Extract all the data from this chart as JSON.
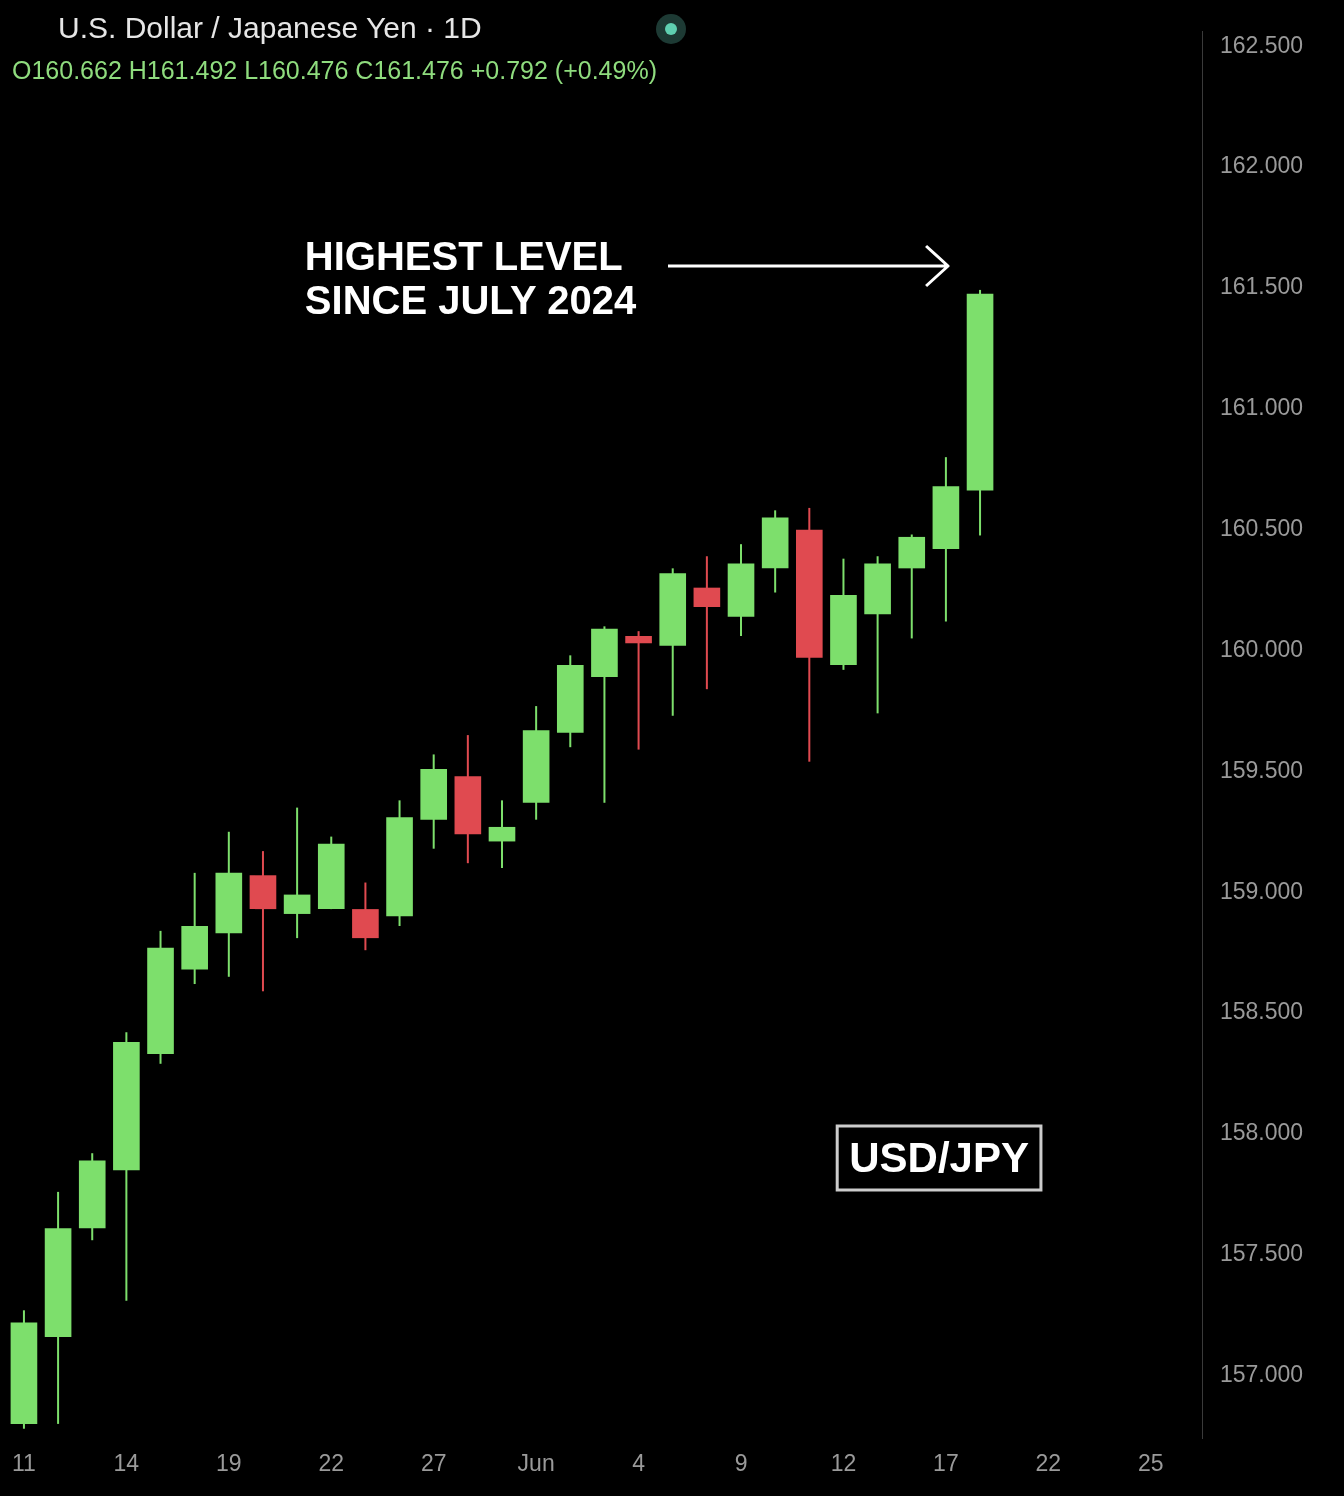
{
  "chart_data": {
    "type": "candlestick",
    "title": "U.S. Dollar / Japanese Yen · 1D",
    "subtitle": "O160.662 H161.492 L160.476 C161.476 +0.792 (+0.49%)",
    "categories": [
      "11",
      null,
      null,
      "14",
      null,
      null,
      "19",
      null,
      null,
      "22",
      null,
      null,
      "27",
      null,
      null,
      "Jun",
      null,
      null,
      "4",
      null,
      null,
      "9",
      null,
      null,
      "12",
      null,
      null,
      "17",
      null,
      null,
      "22",
      null,
      null,
      "25",
      null
    ],
    "ohlc": [
      [
        156.8,
        157.27,
        156.78,
        157.22
      ],
      [
        157.16,
        157.76,
        156.8,
        157.61
      ],
      [
        157.61,
        157.92,
        157.56,
        157.89
      ],
      [
        157.85,
        158.42,
        157.31,
        158.38
      ],
      [
        158.33,
        158.84,
        158.29,
        158.77
      ],
      [
        158.68,
        159.08,
        158.62,
        158.86
      ],
      [
        158.83,
        159.25,
        158.65,
        159.08
      ],
      [
        159.07,
        159.17,
        158.59,
        158.93
      ],
      [
        158.91,
        159.35,
        158.81,
        158.99
      ],
      [
        158.93,
        159.23,
        158.93,
        159.2
      ],
      [
        158.93,
        159.04,
        158.76,
        158.81
      ],
      [
        158.9,
        159.38,
        158.86,
        159.31
      ],
      [
        159.3,
        159.57,
        159.18,
        159.51
      ],
      [
        159.48,
        159.65,
        159.12,
        159.24
      ],
      [
        159.21,
        159.38,
        159.1,
        159.27
      ],
      [
        159.37,
        159.77,
        159.3,
        159.67
      ],
      [
        159.66,
        159.98,
        159.6,
        159.94
      ],
      [
        159.89,
        160.1,
        159.37,
        160.09
      ],
      [
        160.06,
        160.08,
        159.59,
        160.03
      ],
      [
        160.02,
        160.34,
        159.73,
        160.32
      ],
      [
        160.26,
        160.39,
        159.84,
        160.18
      ],
      [
        160.14,
        160.44,
        160.06,
        160.36
      ],
      [
        160.34,
        160.58,
        160.24,
        160.55
      ],
      [
        160.5,
        160.59,
        159.54,
        159.97
      ],
      [
        159.94,
        160.38,
        159.92,
        160.23
      ],
      [
        160.15,
        160.39,
        159.74,
        160.36
      ],
      [
        160.34,
        160.48,
        160.05,
        160.47
      ],
      [
        160.42,
        160.8,
        160.12,
        160.68
      ],
      [
        160.662,
        161.492,
        160.476,
        161.476
      ],
      null,
      null,
      null,
      null,
      null,
      null
    ],
    "colors": [
      "#7ddf6c",
      "#7ddf6c",
      "#7ddf6c",
      "#7ddf6c",
      "#7ddf6c",
      "#7ddf6c",
      "#7ddf6c",
      "#e04a50",
      "#7ddf6c",
      "#7ddf6c",
      "#e04a50",
      "#7ddf6c",
      "#7ddf6c",
      "#e04a50",
      "#7ddf6c",
      "#7ddf6c",
      "#7ddf6c",
      "#7ddf6c",
      "#e04a50",
      "#7ddf6c",
      "#e04a50",
      "#7ddf6c",
      "#7ddf6c",
      "#e04a50",
      "#7ddf6c",
      "#7ddf6c",
      "#7ddf6c",
      "#7ddf6c",
      "#7ddf6c",
      null,
      null,
      null,
      null,
      null,
      null
    ],
    "ylim": [
      156.74,
      162.56
    ],
    "yticks": [
      {
        "value": 157,
        "label": "157.000"
      },
      {
        "value": 157.5,
        "label": "157.500"
      },
      {
        "value": 158,
        "label": "158.000"
      },
      {
        "value": 158.5,
        "label": "158.500"
      },
      {
        "value": 159,
        "label": "159.000"
      },
      {
        "value": 159.5,
        "label": "159.500"
      },
      {
        "value": 160,
        "label": "160.000"
      },
      {
        "value": 160.5,
        "label": "160.500"
      },
      {
        "value": 161,
        "label": "161.000"
      },
      {
        "value": 161.5,
        "label": "161.500"
      },
      {
        "value": 162,
        "label": "162.000"
      },
      {
        "value": 162.5,
        "label": "162.500"
      }
    ],
    "annotations": [
      "HIGHEST LEVEL\nSINCE JULY 2024",
      "USD/JPY"
    ],
    "legend": false
  }
}
